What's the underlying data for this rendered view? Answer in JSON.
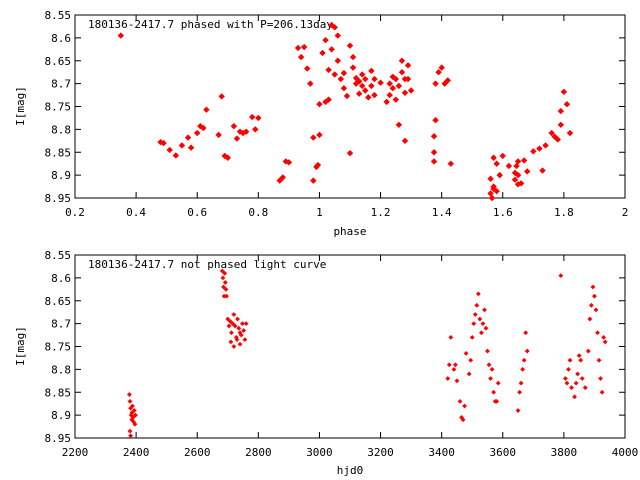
{
  "colors": {
    "points": "#ff0000",
    "axes": "#000000",
    "background": "#ffffff"
  },
  "chart_data": [
    {
      "type": "scatter",
      "title": "180136-2417.7 phased with P=206.13day",
      "xlabel": "phase",
      "ylabel": "I[mag]",
      "xlim": [
        0.2,
        2
      ],
      "ylim": [
        8.55,
        8.95
      ],
      "y_inverted": true,
      "grid": false,
      "x_ticks": [
        "0.2",
        "0.4",
        "0.6",
        "0.8",
        "1",
        "1.2",
        "1.4",
        "1.6",
        "1.8",
        "2"
      ],
      "y_ticks": [
        "8.55",
        "8.6",
        "8.65",
        "8.7",
        "8.75",
        "8.8",
        "8.85",
        "8.9",
        "8.95"
      ],
      "x_tick_values": [
        0.2,
        0.4,
        0.6,
        0.8,
        1.0,
        1.2,
        1.4,
        1.6,
        1.8,
        2.0
      ],
      "y_tick_values": [
        8.55,
        8.6,
        8.65,
        8.7,
        8.75,
        8.8,
        8.85,
        8.9,
        8.95
      ],
      "points": [
        [
          0.35,
          8.595
        ],
        [
          0.48,
          8.828
        ],
        [
          0.49,
          8.83
        ],
        [
          0.51,
          8.845
        ],
        [
          0.53,
          8.857
        ],
        [
          0.55,
          8.835
        ],
        [
          0.57,
          8.818
        ],
        [
          0.58,
          8.84
        ],
        [
          0.6,
          8.808
        ],
        [
          0.61,
          8.793
        ],
        [
          0.62,
          8.797
        ],
        [
          0.63,
          8.757
        ],
        [
          0.67,
          8.812
        ],
        [
          0.68,
          8.728
        ],
        [
          0.69,
          8.858
        ],
        [
          0.7,
          8.862
        ],
        [
          0.72,
          8.793
        ],
        [
          0.73,
          8.82
        ],
        [
          0.74,
          8.805
        ],
        [
          0.75,
          8.808
        ],
        [
          0.76,
          8.805
        ],
        [
          0.78,
          8.773
        ],
        [
          0.79,
          8.8
        ],
        [
          0.8,
          8.775
        ],
        [
          0.87,
          8.912
        ],
        [
          0.88,
          8.905
        ],
        [
          0.89,
          8.87
        ],
        [
          0.9,
          8.872
        ],
        [
          0.93,
          8.622
        ],
        [
          0.94,
          8.642
        ],
        [
          0.95,
          8.62
        ],
        [
          0.96,
          8.667
        ],
        [
          0.97,
          8.7
        ],
        [
          0.98,
          8.818
        ],
        [
          0.98,
          8.912
        ],
        [
          0.99,
          8.882
        ],
        [
          0.995,
          8.878
        ],
        [
          1.0,
          8.812
        ],
        [
          1.0,
          8.745
        ],
        [
          1.01,
          8.633
        ],
        [
          1.02,
          8.605
        ],
        [
          1.02,
          8.74
        ],
        [
          1.03,
          8.67
        ],
        [
          1.03,
          8.735
        ],
        [
          1.04,
          8.572
        ],
        [
          1.04,
          8.625
        ],
        [
          1.05,
          8.68
        ],
        [
          1.05,
          8.577
        ],
        [
          1.06,
          8.595
        ],
        [
          1.06,
          8.65
        ],
        [
          1.07,
          8.69
        ],
        [
          1.08,
          8.71
        ],
        [
          1.08,
          8.677
        ],
        [
          1.09,
          8.727
        ],
        [
          1.1,
          8.852
        ],
        [
          1.1,
          8.617
        ],
        [
          1.11,
          8.642
        ],
        [
          1.11,
          8.665
        ],
        [
          1.12,
          8.688
        ],
        [
          1.12,
          8.7
        ],
        [
          1.13,
          8.695
        ],
        [
          1.13,
          8.722
        ],
        [
          1.14,
          8.705
        ],
        [
          1.14,
          8.68
        ],
        [
          1.15,
          8.69
        ],
        [
          1.15,
          8.715
        ],
        [
          1.16,
          8.73
        ],
        [
          1.17,
          8.705
        ],
        [
          1.17,
          8.672
        ],
        [
          1.18,
          8.69
        ],
        [
          1.18,
          8.725
        ],
        [
          1.2,
          8.698
        ],
        [
          1.22,
          8.74
        ],
        [
          1.23,
          8.7
        ],
        [
          1.23,
          8.725
        ],
        [
          1.24,
          8.685
        ],
        [
          1.24,
          8.71
        ],
        [
          1.25,
          8.735
        ],
        [
          1.25,
          8.69
        ],
        [
          1.26,
          8.705
        ],
        [
          1.26,
          8.79
        ],
        [
          1.27,
          8.65
        ],
        [
          1.27,
          8.675
        ],
        [
          1.28,
          8.69
        ],
        [
          1.28,
          8.72
        ],
        [
          1.28,
          8.825
        ],
        [
          1.29,
          8.66
        ],
        [
          1.29,
          8.69
        ],
        [
          1.3,
          8.715
        ],
        [
          1.38,
          8.7
        ],
        [
          1.39,
          8.675
        ],
        [
          1.4,
          8.665
        ],
        [
          1.41,
          8.7
        ],
        [
          1.42,
          8.693
        ],
        [
          1.375,
          8.815
        ],
        [
          1.375,
          8.85
        ],
        [
          1.375,
          8.87
        ],
        [
          1.38,
          8.78
        ],
        [
          1.43,
          8.875
        ],
        [
          1.56,
          8.908
        ],
        [
          1.56,
          8.94
        ],
        [
          1.565,
          8.95
        ],
        [
          1.57,
          8.93
        ],
        [
          1.57,
          8.925
        ],
        [
          1.57,
          8.862
        ],
        [
          1.58,
          8.875
        ],
        [
          1.58,
          8.935
        ],
        [
          1.59,
          8.9
        ],
        [
          1.6,
          8.858
        ],
        [
          1.62,
          8.88
        ],
        [
          1.64,
          8.91
        ],
        [
          1.64,
          8.895
        ],
        [
          1.645,
          8.88
        ],
        [
          1.65,
          8.92
        ],
        [
          1.65,
          8.9
        ],
        [
          1.65,
          8.87
        ],
        [
          1.66,
          8.918
        ],
        [
          1.67,
          8.868
        ],
        [
          1.68,
          8.892
        ],
        [
          1.7,
          8.848
        ],
        [
          1.72,
          8.842
        ],
        [
          1.73,
          8.89
        ],
        [
          1.74,
          8.835
        ],
        [
          1.76,
          8.808
        ],
        [
          1.77,
          8.816
        ],
        [
          1.78,
          8.822
        ],
        [
          1.79,
          8.79
        ],
        [
          1.79,
          8.76
        ],
        [
          1.8,
          8.718
        ],
        [
          1.81,
          8.745
        ],
        [
          1.82,
          8.808
        ]
      ]
    },
    {
      "type": "scatter",
      "title": "180136-2417.7 not phased light curve",
      "xlabel": "hjd0",
      "ylabel": "I[mag]",
      "xlim": [
        2200,
        4000
      ],
      "ylim": [
        8.55,
        8.95
      ],
      "y_inverted": true,
      "grid": false,
      "x_ticks": [
        "2200",
        "2400",
        "2600",
        "2800",
        "3000",
        "3200",
        "3400",
        "3600",
        "3800",
        "4000"
      ],
      "y_ticks": [
        "8.55",
        "8.6",
        "8.65",
        "8.7",
        "8.75",
        "8.8",
        "8.85",
        "8.9",
        "8.95"
      ],
      "x_tick_values": [
        2200,
        2400,
        2600,
        2800,
        3000,
        3200,
        3400,
        3600,
        3800,
        4000
      ],
      "y_tick_values": [
        8.55,
        8.6,
        8.65,
        8.7,
        8.75,
        8.8,
        8.85,
        8.9,
        8.95
      ],
      "points": [
        [
          2378,
          8.855
        ],
        [
          2380,
          8.87
        ],
        [
          2382,
          8.885
        ],
        [
          2384,
          8.9
        ],
        [
          2386,
          8.895
        ],
        [
          2388,
          8.88
        ],
        [
          2390,
          8.905
        ],
        [
          2392,
          8.915
        ],
        [
          2394,
          8.89
        ],
        [
          2396,
          8.92
        ],
        [
          2380,
          8.935
        ],
        [
          2382,
          8.945
        ],
        [
          2386,
          8.91
        ],
        [
          2398,
          8.9
        ],
        [
          2682,
          8.585
        ],
        [
          2684,
          8.6
        ],
        [
          2686,
          8.62
        ],
        [
          2688,
          8.64
        ],
        [
          2690,
          8.59
        ],
        [
          2692,
          8.61
        ],
        [
          2694,
          8.625
        ],
        [
          2696,
          8.64
        ],
        [
          2700,
          8.69
        ],
        [
          2704,
          8.705
        ],
        [
          2708,
          8.695
        ],
        [
          2712,
          8.72
        ],
        [
          2716,
          8.7
        ],
        [
          2720,
          8.68
        ],
        [
          2724,
          8.705
        ],
        [
          2728,
          8.73
        ],
        [
          2732,
          8.69
        ],
        [
          2736,
          8.71
        ],
        [
          2740,
          8.745
        ],
        [
          2744,
          8.725
        ],
        [
          2748,
          8.7
        ],
        [
          2752,
          8.715
        ],
        [
          2756,
          8.735
        ],
        [
          2760,
          8.7
        ],
        [
          2710,
          8.74
        ],
        [
          2720,
          8.75
        ],
        [
          2730,
          8.735
        ],
        [
          2740,
          8.72
        ],
        [
          3420,
          8.82
        ],
        [
          3425,
          8.79
        ],
        [
          3430,
          8.73
        ],
        [
          3440,
          8.8
        ],
        [
          3445,
          8.79
        ],
        [
          3450,
          8.825
        ],
        [
          3460,
          8.87
        ],
        [
          3465,
          8.905
        ],
        [
          3470,
          8.91
        ],
        [
          3475,
          8.88
        ],
        [
          3480,
          8.765
        ],
        [
          3490,
          8.81
        ],
        [
          3495,
          8.78
        ],
        [
          3500,
          8.73
        ],
        [
          3505,
          8.7
        ],
        [
          3510,
          8.68
        ],
        [
          3515,
          8.66
        ],
        [
          3520,
          8.635
        ],
        [
          3525,
          8.69
        ],
        [
          3530,
          8.72
        ],
        [
          3535,
          8.7
        ],
        [
          3540,
          8.67
        ],
        [
          3545,
          8.71
        ],
        [
          3550,
          8.76
        ],
        [
          3555,
          8.79
        ],
        [
          3560,
          8.82
        ],
        [
          3565,
          8.8
        ],
        [
          3570,
          8.85
        ],
        [
          3575,
          8.87
        ],
        [
          3580,
          8.87
        ],
        [
          3585,
          8.83
        ],
        [
          3650,
          8.89
        ],
        [
          3655,
          8.85
        ],
        [
          3660,
          8.83
        ],
        [
          3665,
          8.8
        ],
        [
          3670,
          8.78
        ],
        [
          3675,
          8.72
        ],
        [
          3680,
          8.76
        ],
        [
          3790,
          8.595
        ],
        [
          3805,
          8.82
        ],
        [
          3810,
          8.83
        ],
        [
          3815,
          8.8
        ],
        [
          3820,
          8.78
        ],
        [
          3825,
          8.84
        ],
        [
          3835,
          8.86
        ],
        [
          3840,
          8.83
        ],
        [
          3845,
          8.81
        ],
        [
          3850,
          8.77
        ],
        [
          3855,
          8.78
        ],
        [
          3860,
          8.82
        ],
        [
          3870,
          8.84
        ],
        [
          3880,
          8.76
        ],
        [
          3885,
          8.69
        ],
        [
          3890,
          8.66
        ],
        [
          3895,
          8.62
        ],
        [
          3900,
          8.64
        ],
        [
          3905,
          8.67
        ],
        [
          3910,
          8.72
        ],
        [
          3915,
          8.78
        ],
        [
          3920,
          8.82
        ],
        [
          3925,
          8.85
        ],
        [
          3930,
          8.73
        ],
        [
          3935,
          8.74
        ]
      ]
    }
  ]
}
